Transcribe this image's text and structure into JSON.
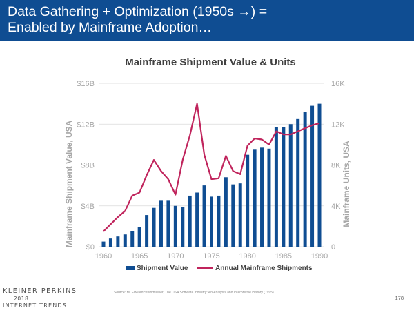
{
  "slide": {
    "title_line1": "Data Gathering + Optimization (1950s →) =",
    "title_line2": "Enabled by Mainframe Adoption…",
    "source": "Source: M. Edward Steinmueller, The USA Software Industry: An Analysis and Interpretive History (1995).",
    "page_number": "178",
    "brand": {
      "name": "KLEINER PERKINS",
      "year": "2018",
      "sub": "INTERNET TRENDS"
    }
  },
  "colors": {
    "header_bg": "#0f4d92",
    "bar": "#0f4d92",
    "line": "#c0245c",
    "axis_text": "#a6a6a6",
    "grid": "#d9d9d9"
  },
  "chart_data": {
    "type": "bar",
    "title": "Mainframe Shipment Value & Units",
    "ylabel": "Mainframe Shipment Value, USA",
    "ylabel_right": "Mainframe Units, USA",
    "x": [
      1960,
      1961,
      1962,
      1963,
      1964,
      1965,
      1966,
      1967,
      1968,
      1969,
      1970,
      1971,
      1972,
      1973,
      1974,
      1975,
      1976,
      1977,
      1978,
      1979,
      1980,
      1981,
      1982,
      1983,
      1984,
      1985,
      1986,
      1987,
      1988,
      1989,
      1990
    ],
    "x_ticks": [
      "1960",
      "1965",
      "1970",
      "1975",
      "1980",
      "1985",
      "1990"
    ],
    "x_tick_values": [
      1960,
      1965,
      1970,
      1975,
      1980,
      1985,
      1990
    ],
    "ylim": [
      0,
      16
    ],
    "y_ticks": [
      "$0",
      "$4B",
      "$8B",
      "$12B",
      "$16B"
    ],
    "y_tick_values": [
      0,
      4,
      8,
      12,
      16
    ],
    "y2lim": [
      0,
      16
    ],
    "y2_ticks": [
      "0",
      "4K",
      "8K",
      "12K",
      "16K"
    ],
    "y2_tick_values": [
      0,
      4,
      8,
      12,
      16
    ],
    "grid": true,
    "legend_position": "bottom",
    "series": [
      {
        "name": "Shipment Value",
        "kind": "bar",
        "axis": "left",
        "values": [
          0.5,
          0.8,
          1.0,
          1.2,
          1.5,
          1.9,
          3.1,
          3.8,
          4.5,
          4.5,
          4.0,
          3.9,
          5.0,
          5.3,
          6.0,
          4.9,
          5.0,
          6.8,
          6.1,
          6.2,
          9.0,
          9.5,
          9.7,
          9.6,
          11.7,
          11.7,
          12.0,
          12.5,
          13.2,
          13.8,
          14.0
        ]
      },
      {
        "name": "Annual Mainframe Shipments",
        "kind": "line",
        "axis": "right",
        "values": [
          1.5,
          2.2,
          2.9,
          3.5,
          5.0,
          5.3,
          7.0,
          8.5,
          7.4,
          6.6,
          5.1,
          8.5,
          10.9,
          14.0,
          9.0,
          6.6,
          6.7,
          8.9,
          7.4,
          7.1,
          9.9,
          10.6,
          10.5,
          10.0,
          11.3,
          11.0,
          11.0,
          11.3,
          11.6,
          11.9,
          12.1
        ]
      }
    ]
  }
}
